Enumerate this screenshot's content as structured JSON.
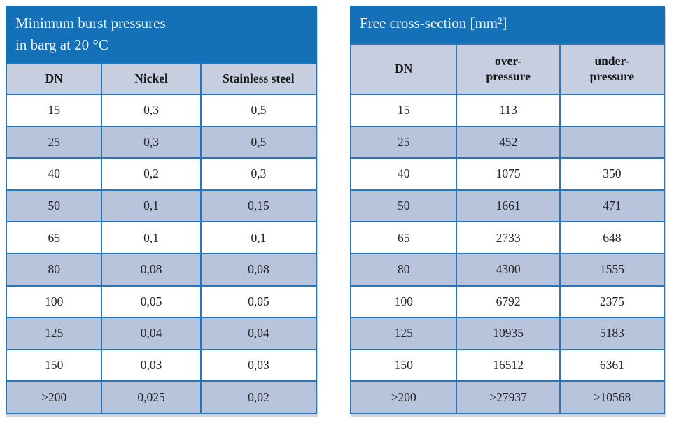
{
  "colors": {
    "header_blue": "#1471b8",
    "border_blue": "#2277c3",
    "row_alt_blue": "#b8c3dc",
    "column_header_bg": "#c6cedf",
    "title_text": "#e9f2fa",
    "cell_text": "#262626"
  },
  "left_table": {
    "title_line1": "Minimum burst pressures",
    "title_line2": "in barg at 20 °C",
    "columns": [
      "DN",
      "Nickel",
      "Stainless steel"
    ],
    "rows": [
      [
        "15",
        "0,3",
        "0,5"
      ],
      [
        "25",
        "0,3",
        "0,5"
      ],
      [
        "40",
        "0,2",
        "0,3"
      ],
      [
        "50",
        "0,1",
        "0,15"
      ],
      [
        "65",
        "0,1",
        "0,1"
      ],
      [
        "80",
        "0,08",
        "0,08"
      ],
      [
        "100",
        "0,05",
        "0,05"
      ],
      [
        "125",
        "0,04",
        "0,04"
      ],
      [
        "150",
        "0,03",
        "0,03"
      ],
      [
        ">200",
        "0,025",
        "0,02"
      ]
    ]
  },
  "right_table": {
    "title": "Free cross-section [mm²]",
    "columns": [
      "DN",
      "over-\npressure",
      "under-\npressure"
    ],
    "rows": [
      [
        "15",
        "113",
        ""
      ],
      [
        "25",
        "452",
        ""
      ],
      [
        "40",
        "1075",
        "350"
      ],
      [
        "50",
        "1661",
        "471"
      ],
      [
        "65",
        "2733",
        "648"
      ],
      [
        "80",
        "4300",
        "1555"
      ],
      [
        "100",
        "6792",
        "2375"
      ],
      [
        "125",
        "10935",
        "5183"
      ],
      [
        "150",
        "16512",
        "6361"
      ],
      [
        ">200",
        ">27937",
        ">10568"
      ]
    ]
  },
  "chart_data": [
    {
      "type": "table",
      "title": "Minimum burst pressures in barg at 20 °C",
      "columns": [
        "DN",
        "Nickel",
        "Stainless steel"
      ],
      "rows": [
        [
          "15",
          "0,3",
          "0,5"
        ],
        [
          "25",
          "0,3",
          "0,5"
        ],
        [
          "40",
          "0,2",
          "0,3"
        ],
        [
          "50",
          "0,1",
          "0,15"
        ],
        [
          "65",
          "0,1",
          "0,1"
        ],
        [
          "80",
          "0,08",
          "0,08"
        ],
        [
          "100",
          "0,05",
          "0,05"
        ],
        [
          "125",
          "0,04",
          "0,04"
        ],
        [
          "150",
          "0,03",
          "0,03"
        ],
        [
          ">200",
          "0,025",
          "0,02"
        ]
      ]
    },
    {
      "type": "table",
      "title": "Free cross-section [mm²]",
      "columns": [
        "DN",
        "over-pressure",
        "under-pressure"
      ],
      "rows": [
        [
          "15",
          "113",
          ""
        ],
        [
          "25",
          "452",
          ""
        ],
        [
          "40",
          "1075",
          "350"
        ],
        [
          "50",
          "1661",
          "471"
        ],
        [
          "65",
          "2733",
          "648"
        ],
        [
          "80",
          "4300",
          "1555"
        ],
        [
          "100",
          "6792",
          "2375"
        ],
        [
          "125",
          "10935",
          "5183"
        ],
        [
          "150",
          "16512",
          "6361"
        ],
        [
          ">200",
          ">27937",
          ">10568"
        ]
      ]
    }
  ]
}
